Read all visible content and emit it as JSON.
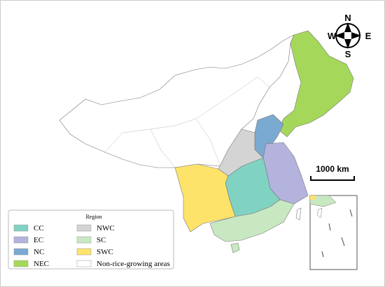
{
  "compass": {
    "n": "N",
    "s": "S",
    "e": "E",
    "w": "W"
  },
  "scale_bar": "1000 km",
  "legend": {
    "title": "Region",
    "items": [
      {
        "label": "CC",
        "color": "#80d3c3"
      },
      {
        "label": "EC",
        "color": "#b4b3dd"
      },
      {
        "label": "NC",
        "color": "#7aa9d2"
      },
      {
        "label": "NEC",
        "color": "#a5d85a"
      },
      {
        "label": "NWC",
        "color": "#d4d4d4"
      },
      {
        "label": "SC",
        "color": "#c8e8c2"
      },
      {
        "label": "SWC",
        "color": "#fde36a"
      },
      {
        "label": "Non-rice-growing areas",
        "color": "#ffffff"
      }
    ]
  }
}
